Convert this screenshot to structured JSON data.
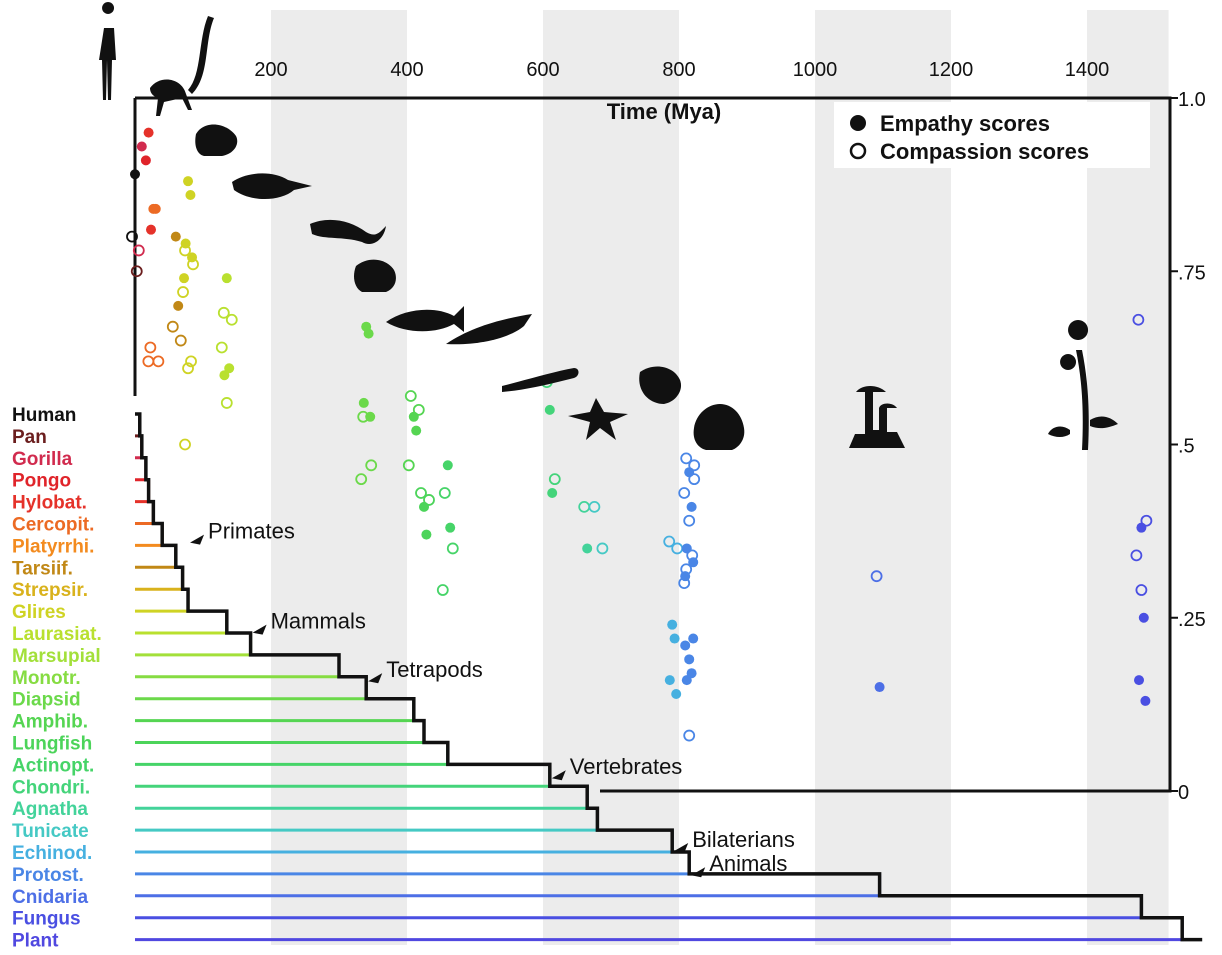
{
  "chart_data": {
    "type": "scatter",
    "xlabel": "Time (Mya)",
    "x_ticks": [
      200,
      400,
      600,
      800,
      1000,
      1200,
      1400
    ],
    "y_ticks": [
      {
        "value": 1.0,
        "label": "1.0"
      },
      {
        "value": 0.75,
        "label": ".75"
      },
      {
        "value": 0.5,
        "label": ".5"
      },
      {
        "value": 0.25,
        "label": ".25"
      },
      {
        "value": 0,
        "label": "0"
      }
    ],
    "shaded_bands": [
      [
        200,
        400
      ],
      [
        600,
        800
      ],
      [
        1000,
        1200
      ],
      [
        1400,
        1520
      ]
    ],
    "legend": {
      "position": "top-right",
      "empathy": "Empathy scores",
      "compassion": "Compassion scores"
    },
    "taxa": [
      {
        "name": "Human",
        "color": "#111111",
        "empathy": [
          0.89
        ],
        "compassion": [
          0.8
        ]
      },
      {
        "name": "Pan",
        "color": "#6b1e1e",
        "empathy": [],
        "compassion": [
          0.75
        ]
      },
      {
        "name": "Gorilla",
        "color": "#d12b4e",
        "empathy": [
          0.93
        ],
        "compassion": [
          0.78
        ]
      },
      {
        "name": "Pongo",
        "color": "#e0242a",
        "empathy": [
          0.91
        ],
        "compassion": []
      },
      {
        "name": "Hylobat.",
        "color": "#e5322a",
        "empathy": [
          0.95,
          0.81
        ],
        "compassion": []
      },
      {
        "name": "Cercopit.",
        "color": "#ec6a24",
        "empathy": [
          0.84,
          0.84
        ],
        "compassion": [
          0.64,
          0.62,
          0.62
        ]
      },
      {
        "name": "Platyrrhi.",
        "color": "#f38b1f",
        "empathy": [],
        "compassion": []
      },
      {
        "name": "Tarsiif.",
        "color": "#c18816",
        "empathy": [
          0.8,
          0.7
        ],
        "compassion": [
          0.67,
          0.65
        ]
      },
      {
        "name": "Strepsir.",
        "color": "#d9b21c",
        "empathy": [],
        "compassion": []
      },
      {
        "name": "Glires",
        "color": "#cfd324",
        "empathy": [
          0.88,
          0.86,
          0.79,
          0.77,
          0.74
        ],
        "compassion": [
          0.78,
          0.76,
          0.72,
          0.61,
          0.62,
          0.5
        ]
      },
      {
        "name": "Laurasiat.",
        "color": "#b9e02f",
        "empathy": [
          0.74,
          0.61,
          0.6
        ],
        "compassion": [
          0.69,
          0.68,
          0.64,
          0.56
        ]
      },
      {
        "name": "Marsupial",
        "color": "#a3e03a",
        "empathy": [],
        "compassion": []
      },
      {
        "name": "Monotr.",
        "color": "#86dc42",
        "empathy": [],
        "compassion": []
      },
      {
        "name": "Diapsid",
        "color": "#6bd94a",
        "empathy": [
          0.67,
          0.66,
          0.56,
          0.54
        ],
        "compassion": [
          0.54,
          0.47,
          0.45
        ]
      },
      {
        "name": "Amphib.",
        "color": "#55d552",
        "empathy": [
          0.54,
          0.52
        ],
        "compassion": [
          0.57,
          0.55,
          0.47
        ]
      },
      {
        "name": "Lungfish",
        "color": "#4cd45a",
        "empathy": [
          0.41,
          0.37
        ],
        "compassion": [
          0.43,
          0.42
        ]
      },
      {
        "name": "Actinopt.",
        "color": "#46d468",
        "empathy": [
          0.47,
          0.38
        ],
        "compassion": [
          0.43,
          0.35,
          0.29
        ]
      },
      {
        "name": "Chondri.",
        "color": "#44d47a",
        "empathy": [
          0.55,
          0.43
        ],
        "compassion": [
          0.59,
          0.45
        ]
      },
      {
        "name": "Agnatha",
        "color": "#43d39a",
        "empathy": [
          0.35
        ],
        "compassion": [
          0.41
        ]
      },
      {
        "name": "Tunicate",
        "color": "#45c9c4",
        "empathy": [],
        "compassion": [
          0.41,
          0.35
        ]
      },
      {
        "name": "Echinod.",
        "color": "#46b0e0",
        "empathy": [
          0.24,
          0.22,
          0.16,
          0.14
        ],
        "compassion": [
          0.36,
          0.35
        ]
      },
      {
        "name": "Protost.",
        "color": "#4a86e6",
        "empathy": [
          0.46,
          0.41,
          0.35,
          0.33,
          0.31,
          0.19,
          0.17,
          0.16,
          0.22,
          0.21
        ],
        "compassion": [
          0.48,
          0.47,
          0.43,
          0.39,
          0.34,
          0.32,
          0.45,
          0.3,
          0.08
        ]
      },
      {
        "name": "Cnidaria",
        "color": "#4d6fe6",
        "empathy": [
          0.15
        ],
        "compassion": [
          0.31
        ]
      },
      {
        "name": "Fungus",
        "color": "#4a4fe2",
        "empathy": [
          0.38,
          0.25,
          0.16,
          0.13
        ],
        "compassion": [
          0.68,
          0.39,
          0.34,
          0.29
        ]
      },
      {
        "name": "Plant",
        "color": "#5048e0",
        "empathy": [],
        "compassion": []
      }
    ],
    "clade_labels": [
      "Primates",
      "Mammals",
      "Tetrapods",
      "Vertebrates",
      "Bilaterians",
      "Animals"
    ]
  }
}
